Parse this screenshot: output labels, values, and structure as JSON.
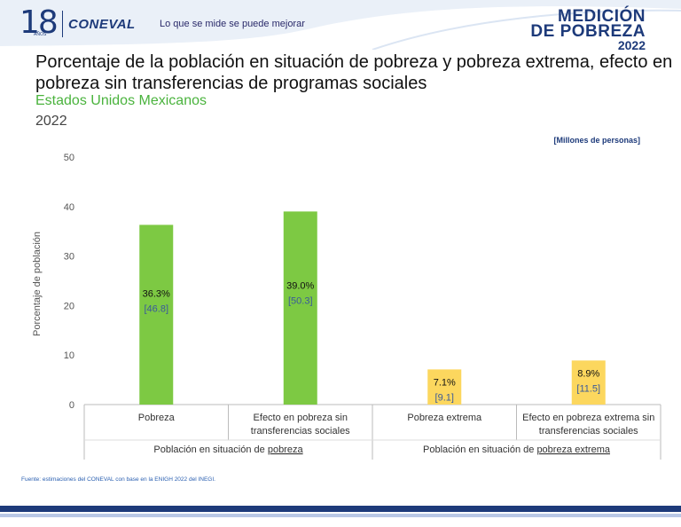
{
  "header": {
    "logo_number": "18",
    "logo_sub": "AÑOS",
    "logo_name": "CONEVAL",
    "tagline": "Lo que se mide se puede mejorar",
    "brand_line1": "MEDICIÓN",
    "brand_line2": "DE POBREZA",
    "brand_year": "2022"
  },
  "title": "Porcentaje de la población en situación de pobreza y pobreza extrema, efecto en pobreza sin transferencias de programas sociales",
  "subtitle": "Estados Unidos Mexicanos",
  "year": "2022",
  "source": "Fuente: estimaciones del CONEVAL con base en la ENIGH 2022 del INEGI.",
  "colors": {
    "green": "#7dc943",
    "yellow": "#fcd75e",
    "navy": "#1d3a7a"
  },
  "chart_data": {
    "type": "bar",
    "units_note": "[Millones de personas]",
    "ylabel": "Porcentaje de población",
    "ylim": [
      0,
      50
    ],
    "yticks": [
      0,
      10,
      20,
      30,
      40,
      50
    ],
    "bars": [
      {
        "category_line1": "Pobreza",
        "category_line2": "",
        "value": 36.3,
        "value_label": "36.3%",
        "millions_label": "[46.8]",
        "group": 0
      },
      {
        "category_line1": "Efecto en pobreza sin",
        "category_line2": "transferencias sociales",
        "value": 39.0,
        "value_label": "39.0%",
        "millions_label": "[50.3]",
        "group": 0
      },
      {
        "category_line1": "Pobreza extrema",
        "category_line2": "",
        "value": 7.1,
        "value_label": "7.1%",
        "millions_label": "[9.1]",
        "group": 1
      },
      {
        "category_line1": "Efecto en pobreza extrema sin",
        "category_line2": "transferencias sociales",
        "value": 8.9,
        "value_label": "8.9%",
        "millions_label": "[11.5]",
        "group": 1
      }
    ],
    "groups": [
      {
        "prefix": "Población en situación de ",
        "emph": "pobreza"
      },
      {
        "prefix": "Población en situación de ",
        "emph": "pobreza extrema"
      }
    ]
  }
}
